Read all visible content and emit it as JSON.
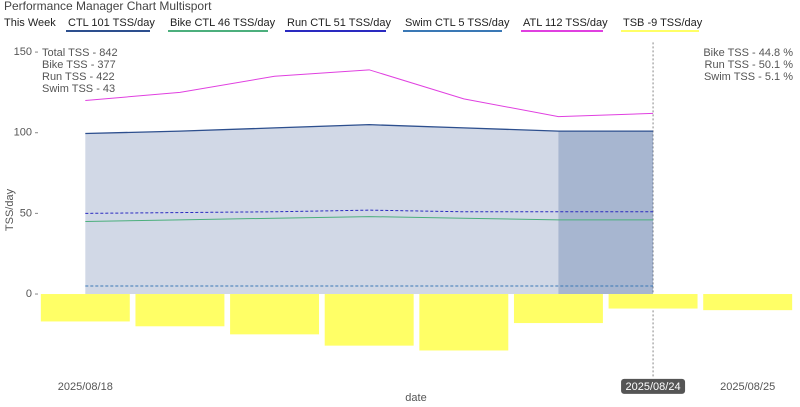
{
  "chart_data": {
    "type": "line",
    "title": "Performance Manager Chart Multisport",
    "legend_title": "This Week",
    "x_label": "date",
    "y_label": "TSS/day",
    "categories": [
      "2025/08/18",
      null,
      null,
      null,
      null,
      null,
      "2025/08/24",
      "2025/08/25"
    ],
    "highlight_category": "2025/08/24",
    "ylim": [
      -52,
      156
    ],
    "yticks": [
      0,
      50,
      100,
      150
    ],
    "grid": false,
    "series": [
      {
        "name": "CTL  101 TSS/day",
        "type": "area",
        "color": "#2d4f8e",
        "values": [
          99.5,
          101,
          103,
          105,
          103,
          101,
          101,
          null
        ]
      },
      {
        "name": "Bike CTL  46 TSS/day",
        "type": "line",
        "color": "#4caf7d",
        "values": [
          45,
          46,
          47,
          48,
          47,
          46,
          46,
          null
        ]
      },
      {
        "name": "Run CTL  51 TSS/day",
        "type": "line",
        "dash": true,
        "color": "#2a2ac0",
        "values": [
          50,
          50.5,
          51,
          52,
          51,
          51,
          51,
          null
        ]
      },
      {
        "name": "Swim CTL  5 TSS/day",
        "type": "line",
        "dash": true,
        "color": "#3a78b5",
        "values": [
          5,
          5,
          5,
          5,
          5,
          5,
          5,
          null
        ]
      },
      {
        "name": "ATL  112 TSS/day",
        "type": "line",
        "color": "#e040e0",
        "values": [
          120,
          125,
          135,
          139,
          121,
          110,
          112,
          null
        ]
      },
      {
        "name": "TSB  -9 TSS/day",
        "type": "bar",
        "color": "#ffff66",
        "values": [
          -17,
          -20,
          -25,
          -32,
          -35,
          -18,
          -9,
          -10
        ]
      }
    ],
    "annotations_left": [
      "Total TSS - 842",
      "Bike TSS - 377",
      "Run TSS - 422",
      "Swim TSS - 43"
    ],
    "annotations_right": [
      "Bike TSS - 44.8 %",
      "Run TSS - 50.1 %",
      "Swim TSS - 5.1 %"
    ]
  }
}
